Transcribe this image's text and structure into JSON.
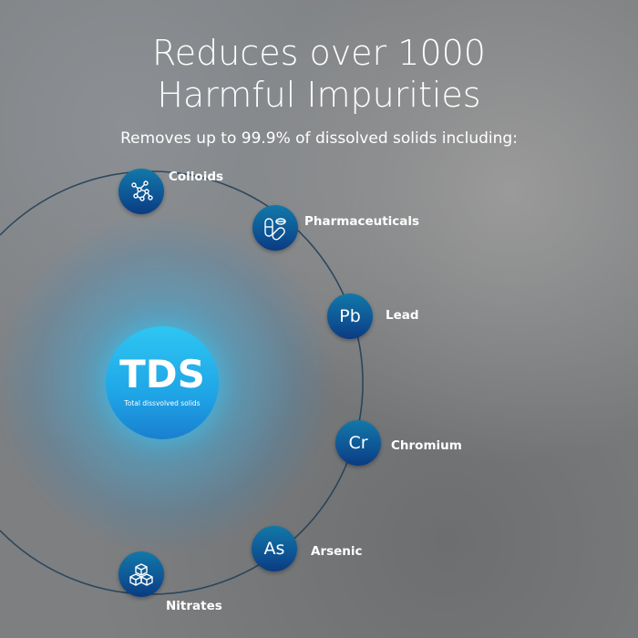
{
  "heading": {
    "line1": "Reduces over 1000",
    "line2": "Harmful Impurities",
    "subtitle": "Removes up to 99.9% of dissolved solids including:"
  },
  "center": {
    "abbr": "TDS",
    "label": "Total dissvolved solids"
  },
  "items": [
    {
      "symbol": "",
      "icon": "molecule-icon",
      "label": "Colloids"
    },
    {
      "symbol": "",
      "icon": "pills-icon",
      "label": "Pharmaceuticals"
    },
    {
      "symbol": "Pb",
      "label": "Lead"
    },
    {
      "symbol": "Cr",
      "label": "Chromium"
    },
    {
      "symbol": "As",
      "label": "Arsenic"
    },
    {
      "symbol": "",
      "icon": "cubes-icon",
      "label": "Nitrates"
    }
  ],
  "colors": {
    "node": "#0d4f91",
    "center": "#1fa5e6",
    "glow": "#5ac8f0"
  }
}
